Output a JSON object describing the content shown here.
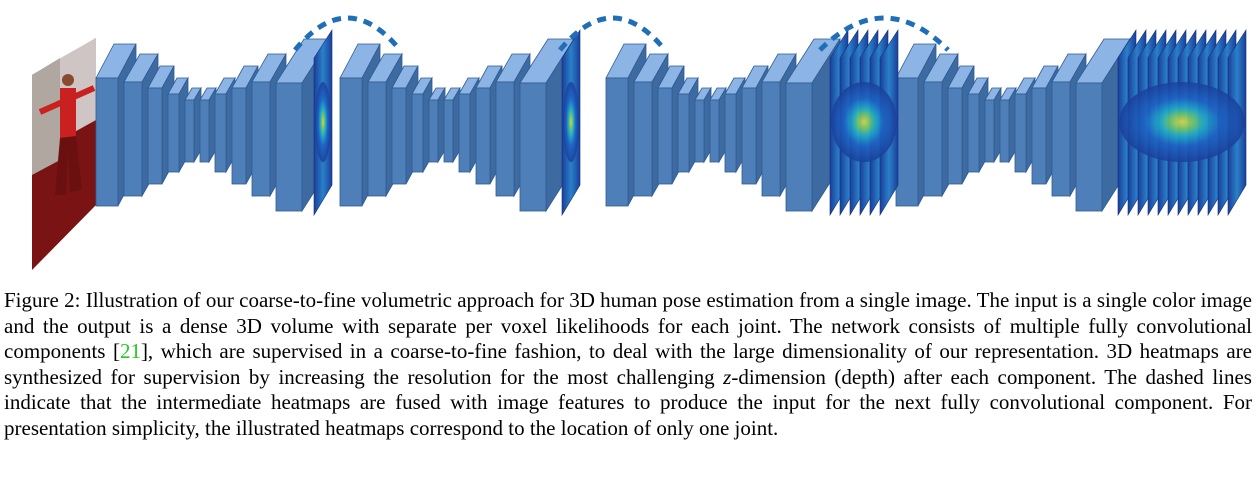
{
  "figure": {
    "colors": {
      "block_front": "#4f7fb8",
      "block_side": "#3d6aa0",
      "block_top": "#8cb4e4",
      "block_edge": "#2f5b92",
      "dash": "#1f6fb8",
      "photo_bg": "#7a1414",
      "photo_figure": "#c92020",
      "heat_bg": "#1f4aa8",
      "heat_mid": "#2aa0c8",
      "heat_hot": "#e8d23a"
    },
    "components": 4,
    "heatmap_slices": [
      1,
      1,
      6,
      12
    ]
  },
  "caption": {
    "part1": "Figure 2: Illustration of our coarse-to-fine volumetric approach for 3D human pose estimation from a single image. The input is a single color image and the output is a dense 3D volume with separate per voxel likelihoods for each joint. The network consists of multiple fully convolutional components [",
    "cite": "21",
    "part2": "], which are supervised in a coarse-to-fine fashion, to deal with the large dimensionality of our representation. 3D heatmaps are synthesized for supervision by increasing the resolution for the most challenging ",
    "math": "z",
    "part3": "-dimension (depth) after each component. The dashed lines indicate that the intermediate heatmaps are fused with image features to produce the input for the next fully convolutional component. For presentation simplicity, the illustrated heatmaps correspond to the location of only one joint."
  }
}
